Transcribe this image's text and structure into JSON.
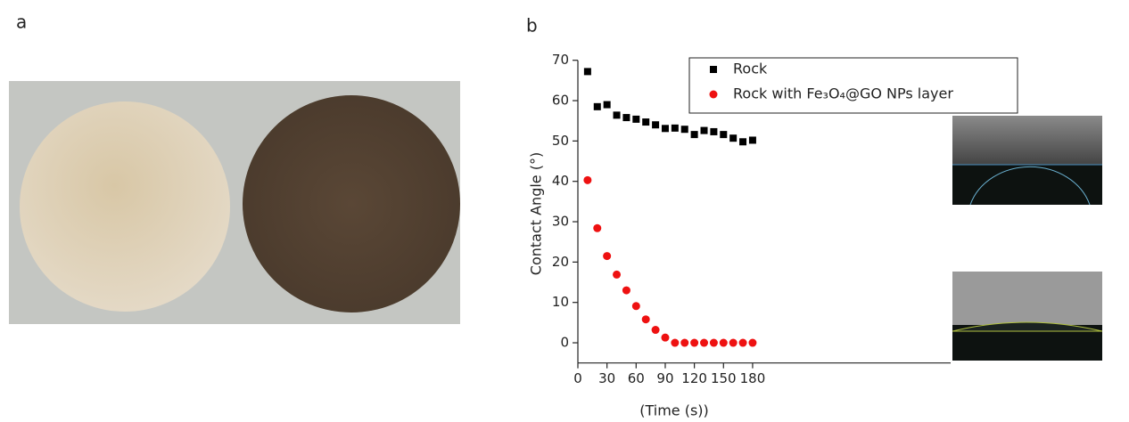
{
  "photo_panel": {
    "label": "a"
  },
  "chart_data": {
    "type": "scatter",
    "panel_label": "b",
    "x_label": "(Time (s))",
    "y_label": "Contact Angle (°)",
    "x": [
      10,
      20,
      30,
      40,
      50,
      60,
      70,
      80,
      90,
      100,
      110,
      120,
      130,
      140,
      150,
      160,
      170,
      180
    ],
    "series": [
      {
        "name": "Rock",
        "color": "#000000",
        "marker": "square",
        "values": [
          67.2,
          58.5,
          59,
          56.4,
          55.8,
          55.4,
          54.7,
          54,
          53.1,
          53.2,
          52.9,
          51.6,
          52.6,
          52.3,
          51.6,
          50.7,
          49.8,
          50.2
        ]
      },
      {
        "name": "Rock with Fe₃O₄@GO NPs layer",
        "color": "#ee1111",
        "marker": "circle",
        "values": [
          40.3,
          28.4,
          21.5,
          16.9,
          13,
          9.1,
          5.8,
          3.2,
          1.3,
          0,
          0,
          0,
          0,
          0,
          0,
          0,
          0,
          0
        ]
      }
    ],
    "xlim": [
      0,
      384
    ],
    "xticks": [
      0,
      30,
      60,
      90,
      120,
      150,
      180
    ],
    "ylim": [
      -5,
      70
    ],
    "yticks": [
      0,
      10,
      20,
      30,
      40,
      50,
      60,
      70
    ],
    "grid": false,
    "legend": "top-right"
  }
}
